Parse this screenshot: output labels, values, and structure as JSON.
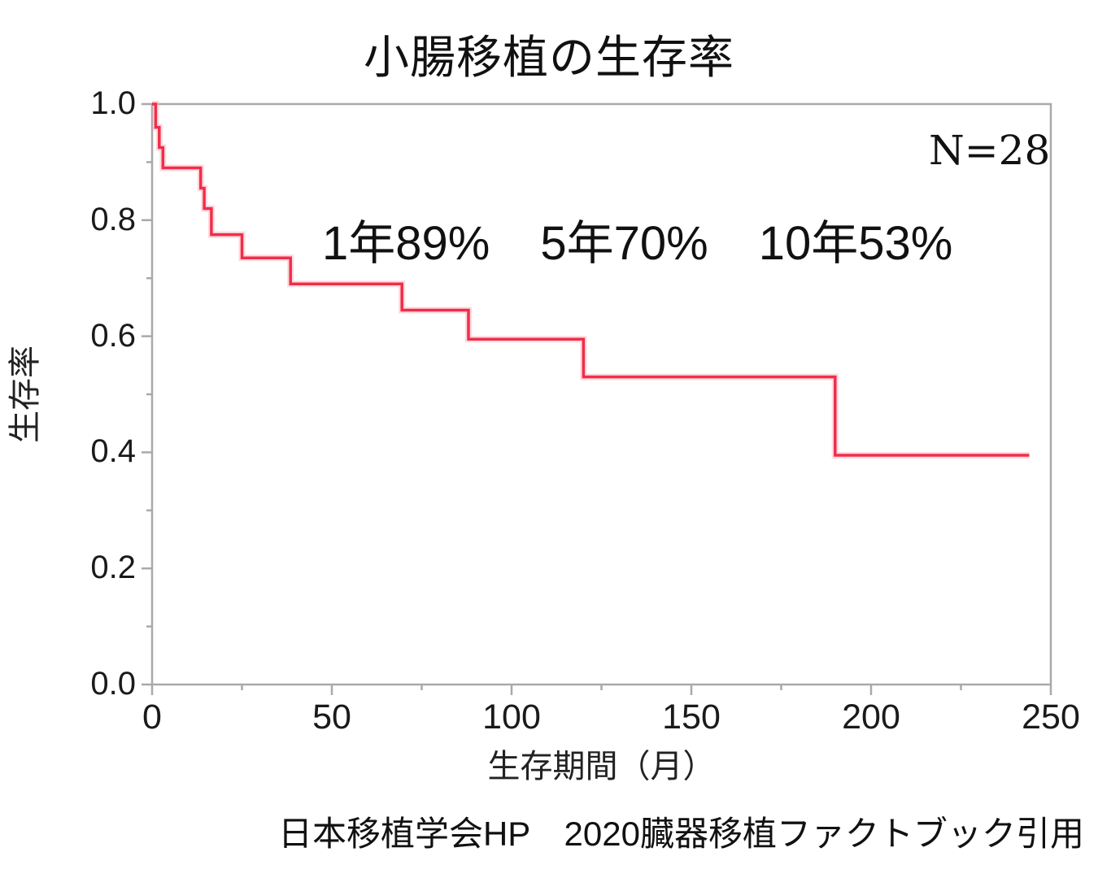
{
  "header": {
    "title": "小腸移植の生存率"
  },
  "plot": {
    "n_label": "N=28",
    "annotations": [
      "1年89%",
      "5年70%",
      "10年53%"
    ]
  },
  "axis": {
    "xlabel": "生存期間（月）",
    "ylabel": "生存率"
  },
  "footer": {
    "source": "日本移植学会HP　2020臓器移植ファクトブック引用"
  },
  "colors": {
    "curve": "#f02e4a",
    "curve_halo": "#f9aab8",
    "axis": "#a9a9a9",
    "text": "#1a1a1a"
  },
  "chart_data": {
    "type": "line",
    "subtype": "kaplan_meier_step_survival",
    "title": "小腸移植の生存率",
    "xlabel": "生存期間（月）",
    "ylabel": "生存率",
    "sample_size_label": "N=28",
    "sample_size": 28,
    "survival_rates": {
      "1年": "89%",
      "5年": "70%",
      "10年": "53%"
    },
    "xlim": [
      0,
      250
    ],
    "ylim": [
      0.0,
      1.0
    ],
    "grid": false,
    "legend": "none",
    "x_ticks_major": [
      {
        "value": 0,
        "label": "0"
      },
      {
        "value": 50,
        "label": "50"
      },
      {
        "value": 100,
        "label": "100"
      },
      {
        "value": 150,
        "label": "150"
      },
      {
        "value": 200,
        "label": "200"
      },
      {
        "value": 250,
        "label": "250"
      }
    ],
    "x_ticks_minor": [
      25,
      75,
      125,
      175,
      225
    ],
    "y_ticks_major": [
      {
        "value": 1.0,
        "label": "1.0"
      },
      {
        "value": 0.8,
        "label": "0.8"
      },
      {
        "value": 0.6,
        "label": "0.6"
      },
      {
        "value": 0.4,
        "label": "0.4"
      },
      {
        "value": 0.2,
        "label": "0.2"
      },
      {
        "value": 0.0,
        "label": "0.0"
      }
    ],
    "y_ticks_minor": [
      0.9,
      0.7,
      0.5,
      0.3,
      0.1
    ],
    "series": [
      {
        "name": "生存率",
        "color": "#f02e4a",
        "step": "post",
        "points": [
          [
            0,
            1.0
          ],
          [
            1,
            0.96
          ],
          [
            2,
            0.925
          ],
          [
            3,
            0.89
          ],
          [
            13.5,
            0.855
          ],
          [
            14.5,
            0.82
          ],
          [
            16.5,
            0.775
          ],
          [
            25,
            0.735
          ],
          [
            38.5,
            0.69
          ],
          [
            69.5,
            0.645
          ],
          [
            88,
            0.595
          ],
          [
            120,
            0.53
          ],
          [
            190,
            0.395
          ],
          [
            244,
            0.395
          ]
        ]
      }
    ]
  }
}
